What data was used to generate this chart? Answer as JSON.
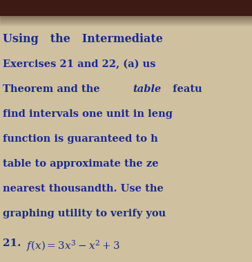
{
  "bg_color": "#cfc0a0",
  "top_bar_color": "#3d1a14",
  "title_line": "Using   the   Intermediate",
  "body_lines": [
    "Exercises 21 and 22, (a) us",
    "Theorem and the table featu",
    "find intervals one unit in leng",
    "function is guaranteed to h",
    "table to approximate the ze",
    "nearest thousandth. Use the",
    "graphing utility to verify you"
  ],
  "problem_number": "21.",
  "title_color": "#1a2a8c",
  "body_color": "#1a2a8c",
  "title_fontsize": 11.5,
  "body_fontsize": 10.5,
  "number_fontsize": 11,
  "italic_word": "table",
  "italic_line_idx": 1,
  "italic_before": "Theorem and the ",
  "italic_after": " featu"
}
